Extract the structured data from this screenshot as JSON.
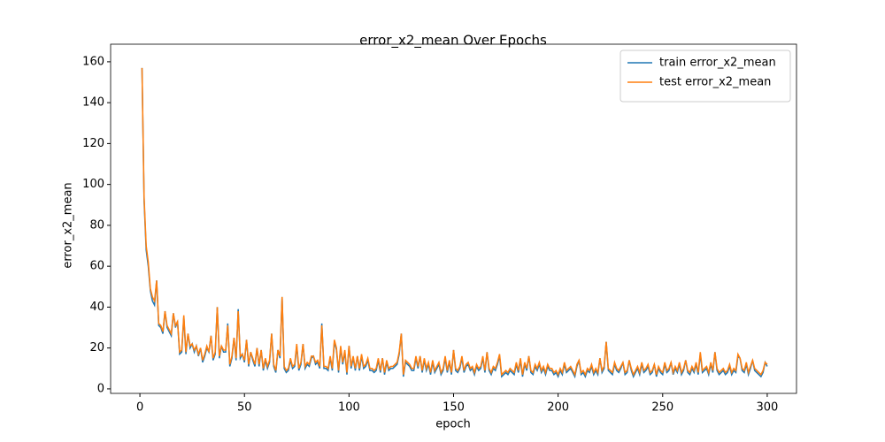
{
  "chart_data": {
    "type": "line",
    "title": "error_x2_mean Over Epochs",
    "xlabel": "epoch",
    "ylabel": "error_x2_mean",
    "x": [
      1,
      2,
      3,
      4,
      5,
      6,
      7,
      8,
      9,
      10,
      11,
      12,
      13,
      14,
      15,
      16,
      17,
      18,
      19,
      20,
      21,
      22,
      23,
      24,
      25,
      26,
      27,
      28,
      29,
      30,
      31,
      32,
      33,
      34,
      35,
      36,
      37,
      38,
      39,
      40,
      41,
      42,
      43,
      44,
      45,
      46,
      47,
      48,
      49,
      50,
      51,
      52,
      53,
      54,
      55,
      56,
      57,
      58,
      59,
      60,
      61,
      62,
      63,
      64,
      65,
      66,
      67,
      68,
      69,
      70,
      71,
      72,
      73,
      74,
      75,
      76,
      77,
      78,
      79,
      80,
      81,
      82,
      83,
      84,
      85,
      86,
      87,
      88,
      89,
      90,
      91,
      92,
      93,
      94,
      95,
      96,
      97,
      98,
      99,
      100,
      101,
      102,
      103,
      104,
      105,
      106,
      107,
      108,
      109,
      110,
      111,
      112,
      113,
      114,
      115,
      116,
      117,
      118,
      119,
      120,
      121,
      122,
      123,
      124,
      125,
      126,
      127,
      128,
      129,
      130,
      131,
      132,
      133,
      134,
      135,
      136,
      137,
      138,
      139,
      140,
      141,
      142,
      143,
      144,
      145,
      146,
      147,
      148,
      149,
      150,
      151,
      152,
      153,
      154,
      155,
      156,
      157,
      158,
      159,
      160,
      161,
      162,
      163,
      164,
      165,
      166,
      167,
      168,
      169,
      170,
      171,
      172,
      173,
      174,
      175,
      176,
      177,
      178,
      179,
      180,
      181,
      182,
      183,
      184,
      185,
      186,
      187,
      188,
      189,
      190,
      191,
      192,
      193,
      194,
      195,
      196,
      197,
      198,
      199,
      200,
      201,
      202,
      203,
      204,
      205,
      206,
      207,
      208,
      209,
      210,
      211,
      212,
      213,
      214,
      215,
      216,
      217,
      218,
      219,
      220,
      221,
      222,
      223,
      224,
      225,
      226,
      227,
      228,
      229,
      230,
      231,
      232,
      233,
      234,
      235,
      236,
      237,
      238,
      239,
      240,
      241,
      242,
      243,
      244,
      245,
      246,
      247,
      248,
      249,
      250,
      251,
      252,
      253,
      254,
      255,
      256,
      257,
      258,
      259,
      260,
      261,
      262,
      263,
      264,
      265,
      266,
      267,
      268,
      269,
      270,
      271,
      272,
      273,
      274,
      275,
      276,
      277,
      278,
      279,
      280,
      281,
      282,
      283,
      284,
      285,
      286,
      287,
      288,
      289,
      290,
      291,
      292,
      293,
      294,
      295,
      296,
      297,
      298,
      299,
      300
    ],
    "series": [
      {
        "name": "train error_x2_mean",
        "color": "#1f77b4",
        "values": [
          157,
          92,
          68,
          60,
          48,
          43,
          41,
          53,
          31,
          30,
          27,
          38,
          30,
          28,
          26,
          37,
          30,
          33,
          17,
          18,
          35,
          17,
          27,
          20,
          22,
          18,
          21,
          16,
          20,
          13,
          16,
          20,
          18,
          26,
          14,
          17,
          40,
          15,
          21,
          18,
          18,
          32,
          11,
          15,
          25,
          14,
          39,
          15,
          17,
          13,
          24,
          11,
          18,
          14,
          11,
          20,
          11,
          19,
          9,
          14,
          10,
          13,
          27,
          11,
          8,
          19,
          15,
          45,
          10,
          8,
          9,
          14,
          10,
          11,
          21,
          9,
          12,
          22,
          10,
          12,
          11,
          15,
          16,
          12,
          13,
          10,
          32,
          10,
          10,
          9,
          15,
          9,
          23,
          19,
          8,
          20,
          12,
          18,
          7,
          21,
          10,
          15,
          9,
          16,
          9,
          16,
          10,
          11,
          14,
          9,
          9,
          8,
          9,
          14,
          8,
          15,
          7,
          13,
          9,
          10,
          10,
          11,
          12,
          17,
          27,
          6,
          13,
          12,
          11,
          9,
          9,
          15,
          10,
          16,
          8,
          14,
          9,
          12,
          7,
          13,
          8,
          10,
          12,
          7,
          9,
          15,
          8,
          13,
          7,
          19,
          9,
          8,
          10,
          15,
          8,
          11,
          12,
          9,
          10,
          7,
          11,
          9,
          10,
          15,
          8,
          18,
          9,
          7,
          10,
          9,
          12,
          16,
          6,
          7,
          8,
          7,
          9,
          8,
          7,
          12,
          8,
          14,
          6,
          12,
          9,
          16,
          8,
          7,
          11,
          9,
          12,
          8,
          10,
          7,
          11,
          9,
          9,
          7,
          8,
          6,
          9,
          7,
          12,
          8,
          9,
          10,
          8,
          6,
          11,
          14,
          7,
          8,
          6,
          9,
          8,
          11,
          7,
          9,
          7,
          15,
          8,
          10,
          23,
          9,
          8,
          7,
          12,
          9,
          8,
          10,
          13,
          7,
          8,
          14,
          9,
          6,
          8,
          10,
          7,
          12,
          8,
          9,
          11,
          7,
          8,
          12,
          6,
          10,
          8,
          7,
          12,
          8,
          9,
          13,
          7,
          10,
          8,
          12,
          7,
          9,
          14,
          8,
          7,
          10,
          8,
          12,
          7,
          17,
          8,
          9,
          10,
          7,
          12,
          8,
          18,
          9,
          7,
          8,
          9,
          7,
          8,
          11,
          7,
          9,
          8,
          16,
          15,
          9,
          8,
          12,
          7,
          10,
          14,
          9,
          8,
          7,
          6,
          8,
          13,
          11
        ]
      },
      {
        "name": "test error_x2_mean",
        "color": "#ff7f0e",
        "values": [
          157,
          94,
          70,
          62,
          49,
          45,
          43,
          53,
          32,
          31,
          28,
          38,
          31,
          29,
          27,
          37,
          31,
          33,
          18,
          19,
          36,
          18,
          27,
          21,
          22,
          19,
          21,
          17,
          20,
          14,
          17,
          21,
          18,
          26,
          15,
          18,
          40,
          16,
          21,
          19,
          19,
          31,
          12,
          16,
          25,
          15,
          38,
          16,
          17,
          14,
          24,
          12,
          18,
          15,
          12,
          20,
          12,
          19,
          10,
          15,
          11,
          14,
          27,
          12,
          9,
          19,
          16,
          45,
          11,
          9,
          10,
          15,
          11,
          12,
          22,
          10,
          13,
          22,
          11,
          13,
          12,
          16,
          16,
          13,
          14,
          11,
          31,
          11,
          11,
          10,
          16,
          10,
          24,
          20,
          9,
          21,
          13,
          19,
          8,
          21,
          11,
          16,
          10,
          16,
          10,
          17,
          11,
          12,
          15,
          10,
          10,
          9,
          10,
          15,
          9,
          15,
          8,
          14,
          10,
          11,
          11,
          12,
          13,
          18,
          27,
          7,
          14,
          13,
          12,
          10,
          10,
          16,
          11,
          16,
          9,
          15,
          10,
          13,
          8,
          14,
          9,
          11,
          13,
          8,
          10,
          16,
          9,
          14,
          8,
          19,
          10,
          9,
          11,
          16,
          9,
          12,
          13,
          10,
          11,
          8,
          12,
          10,
          11,
          16,
          9,
          18,
          10,
          8,
          11,
          10,
          13,
          17,
          7,
          8,
          9,
          8,
          10,
          9,
          8,
          13,
          9,
          15,
          7,
          13,
          10,
          16,
          9,
          8,
          12,
          10,
          13,
          9,
          11,
          8,
          12,
          10,
          10,
          8,
          9,
          7,
          10,
          8,
          13,
          9,
          10,
          11,
          9,
          7,
          12,
          14,
          8,
          9,
          7,
          10,
          9,
          12,
          8,
          10,
          8,
          15,
          9,
          11,
          23,
          10,
          9,
          8,
          13,
          10,
          9,
          11,
          13,
          8,
          9,
          14,
          10,
          7,
          9,
          11,
          8,
          13,
          9,
          10,
          12,
          8,
          9,
          12,
          7,
          11,
          9,
          8,
          13,
          9,
          10,
          13,
          8,
          11,
          9,
          13,
          8,
          10,
          14,
          9,
          8,
          11,
          9,
          13,
          8,
          18,
          9,
          10,
          11,
          8,
          13,
          9,
          18,
          10,
          8,
          9,
          10,
          8,
          9,
          12,
          8,
          10,
          9,
          17,
          15,
          10,
          9,
          13,
          8,
          11,
          14,
          10,
          9,
          8,
          7,
          9,
          13,
          12
        ]
      }
    ],
    "xlim": [
      -14,
      314
    ],
    "ylim": [
      -2.2,
      168.6
    ],
    "xticks": [
      0,
      50,
      100,
      150,
      200,
      250,
      300
    ],
    "yticks": [
      0,
      20,
      40,
      60,
      80,
      100,
      120,
      140,
      160
    ],
    "legend": "upper right"
  }
}
